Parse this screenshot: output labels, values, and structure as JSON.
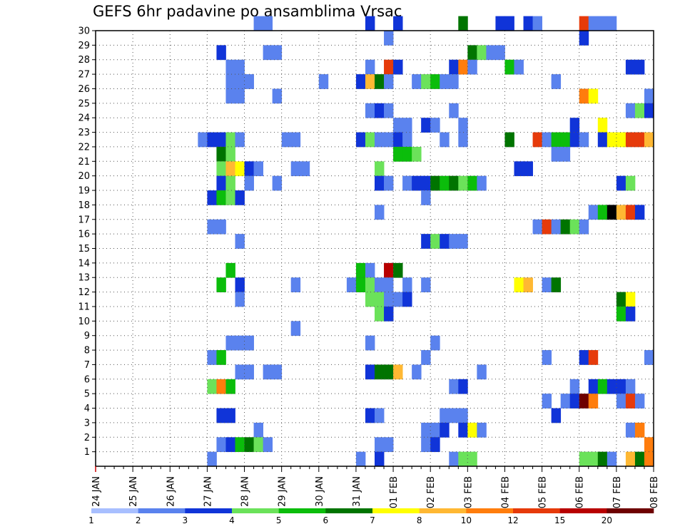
{
  "chart_data": {
    "type": "heatmap",
    "title": "GEFS 6hr padavine po ansamblima Vrsac",
    "xlabel": "",
    "ylabel": "",
    "x_tick_labels": [
      "24 JAN",
      "25 JAN",
      "26 JAN",
      "27 JAN",
      "28 JAN",
      "29 JAN",
      "30 JAN",
      "31 JAN",
      "01 FEB",
      "02 FEB",
      "03 FEB",
      "04 FEB",
      "05 FEB",
      "06 FEB",
      "07 FEB",
      "08 FEB"
    ],
    "y_tick_labels": [
      "1",
      "2",
      "3",
      "4",
      "5",
      "6",
      "7",
      "8",
      "9",
      "10",
      "11",
      "12",
      "13",
      "14",
      "15",
      "16",
      "17",
      "18",
      "19",
      "20",
      "21",
      "22",
      "23",
      "24",
      "25",
      "26",
      "27",
      "28",
      "29",
      "30"
    ],
    "xlim": [
      0,
      60
    ],
    "ylim": [
      0,
      30
    ],
    "x_unit": "6-hour steps from 24 JAN 00Z",
    "grid": true,
    "legend": "bottom",
    "color_scale": {
      "labels": [
        "1",
        "2",
        "3",
        "4",
        "5",
        "6",
        "7",
        "8",
        "10",
        "12",
        "15",
        "20"
      ],
      "colors": [
        "#a8bfff",
        "#5a82ee",
        "#1034d8",
        "#6be25a",
        "#0bbd0b",
        "#007400",
        "#ffff00",
        "#ffb833",
        "#ff7d0d",
        "#e63a0a",
        "#b80000",
        "#6e0000"
      ]
    },
    "cells": [
      [
        30,
        17,
        1
      ],
      [
        30,
        18,
        1
      ],
      [
        30,
        29,
        2
      ],
      [
        30,
        32,
        2
      ],
      [
        30,
        39,
        5
      ],
      [
        30,
        43,
        2
      ],
      [
        30,
        44,
        2
      ],
      [
        30,
        46,
        2
      ],
      [
        30,
        47,
        1
      ],
      [
        30,
        52,
        9
      ],
      [
        30,
        53,
        1
      ],
      [
        30,
        54,
        1
      ],
      [
        30,
        55,
        1
      ],
      [
        29,
        31,
        1
      ],
      [
        29,
        52,
        2
      ],
      [
        28,
        13,
        2
      ],
      [
        28,
        18,
        1
      ],
      [
        28,
        19,
        1
      ],
      [
        28,
        40,
        5
      ],
      [
        28,
        41,
        3
      ],
      [
        28,
        42,
        1
      ],
      [
        28,
        43,
        1
      ],
      [
        27,
        14,
        1
      ],
      [
        27,
        15,
        1
      ],
      [
        27,
        29,
        1
      ],
      [
        27,
        31,
        9
      ],
      [
        27,
        32,
        2
      ],
      [
        27,
        38,
        2
      ],
      [
        27,
        39,
        8
      ],
      [
        27,
        40,
        1
      ],
      [
        27,
        44,
        4
      ],
      [
        27,
        45,
        1
      ],
      [
        27,
        57,
        2
      ],
      [
        27,
        58,
        2
      ],
      [
        26,
        14,
        1
      ],
      [
        26,
        15,
        1
      ],
      [
        26,
        16,
        1
      ],
      [
        26,
        24,
        1
      ],
      [
        26,
        28,
        2
      ],
      [
        26,
        29,
        7
      ],
      [
        26,
        30,
        5
      ],
      [
        26,
        31,
        1
      ],
      [
        26,
        34,
        1
      ],
      [
        26,
        35,
        3
      ],
      [
        26,
        36,
        4
      ],
      [
        26,
        37,
        1
      ],
      [
        26,
        38,
        1
      ],
      [
        26,
        49,
        1
      ],
      [
        25,
        14,
        1
      ],
      [
        25,
        15,
        1
      ],
      [
        25,
        19,
        1
      ],
      [
        25,
        52,
        8
      ],
      [
        25,
        53,
        6
      ],
      [
        25,
        59,
        1
      ],
      [
        24,
        29,
        1
      ],
      [
        24,
        30,
        2
      ],
      [
        24,
        31,
        1
      ],
      [
        24,
        38,
        1
      ],
      [
        24,
        57,
        1
      ],
      [
        24,
        58,
        3
      ],
      [
        24,
        59,
        2
      ],
      [
        23,
        32,
        1
      ],
      [
        23,
        33,
        1
      ],
      [
        23,
        35,
        2
      ],
      [
        23,
        36,
        1
      ],
      [
        23,
        39,
        1
      ],
      [
        23,
        51,
        2
      ],
      [
        23,
        54,
        6
      ],
      [
        22,
        11,
        1
      ],
      [
        22,
        12,
        2
      ],
      [
        22,
        13,
        2
      ],
      [
        22,
        14,
        3
      ],
      [
        22,
        15,
        1
      ],
      [
        22,
        20,
        1
      ],
      [
        22,
        21,
        1
      ],
      [
        22,
        28,
        2
      ],
      [
        22,
        29,
        3
      ],
      [
        22,
        30,
        1
      ],
      [
        22,
        31,
        1
      ],
      [
        22,
        32,
        2
      ],
      [
        22,
        33,
        1
      ],
      [
        22,
        37,
        1
      ],
      [
        22,
        39,
        1
      ],
      [
        22,
        44,
        5
      ],
      [
        22,
        47,
        9
      ],
      [
        22,
        48,
        1
      ],
      [
        22,
        49,
        4
      ],
      [
        22,
        50,
        4
      ],
      [
        22,
        51,
        2
      ],
      [
        22,
        52,
        1
      ],
      [
        22,
        54,
        2
      ],
      [
        22,
        55,
        6
      ],
      [
        22,
        56,
        6
      ],
      [
        22,
        57,
        9
      ],
      [
        22,
        58,
        9
      ],
      [
        22,
        59,
        7
      ],
      [
        21,
        13,
        5
      ],
      [
        21,
        14,
        3
      ],
      [
        21,
        32,
        4
      ],
      [
        21,
        33,
        4
      ],
      [
        21,
        34,
        3
      ],
      [
        21,
        49,
        1
      ],
      [
        21,
        50,
        1
      ],
      [
        20,
        13,
        3
      ],
      [
        20,
        14,
        7
      ],
      [
        20,
        15,
        6
      ],
      [
        20,
        16,
        2
      ],
      [
        20,
        17,
        1
      ],
      [
        20,
        21,
        1
      ],
      [
        20,
        22,
        1
      ],
      [
        20,
        30,
        3
      ],
      [
        20,
        45,
        2
      ],
      [
        20,
        46,
        2
      ],
      [
        19,
        13,
        2
      ],
      [
        19,
        14,
        3
      ],
      [
        19,
        16,
        1
      ],
      [
        19,
        19,
        1
      ],
      [
        19,
        30,
        2
      ],
      [
        19,
        31,
        1
      ],
      [
        19,
        33,
        1
      ],
      [
        19,
        34,
        2
      ],
      [
        19,
        35,
        2
      ],
      [
        19,
        36,
        5
      ],
      [
        19,
        37,
        4
      ],
      [
        19,
        38,
        5
      ],
      [
        19,
        39,
        3
      ],
      [
        19,
        40,
        4
      ],
      [
        19,
        41,
        1
      ],
      [
        19,
        56,
        2
      ],
      [
        19,
        57,
        3
      ],
      [
        18,
        12,
        2
      ],
      [
        18,
        13,
        4
      ],
      [
        18,
        14,
        3
      ],
      [
        18,
        15,
        2
      ],
      [
        18,
        35,
        1
      ],
      [
        17,
        30,
        1
      ],
      [
        17,
        53,
        1
      ],
      [
        17,
        54,
        4
      ],
      [
        17,
        55,
        12
      ],
      [
        17,
        56,
        7
      ],
      [
        17,
        57,
        9
      ],
      [
        17,
        58,
        2
      ],
      [
        16,
        12,
        1
      ],
      [
        16,
        13,
        1
      ],
      [
        16,
        47,
        1
      ],
      [
        16,
        48,
        9
      ],
      [
        16,
        49,
        1
      ],
      [
        16,
        50,
        5
      ],
      [
        16,
        51,
        3
      ],
      [
        16,
        52,
        1
      ],
      [
        15,
        15,
        1
      ],
      [
        15,
        35,
        2
      ],
      [
        15,
        36,
        3
      ],
      [
        15,
        37,
        2
      ],
      [
        15,
        38,
        1
      ],
      [
        15,
        39,
        1
      ],
      [
        13,
        28,
        4
      ],
      [
        13,
        29,
        1
      ],
      [
        13,
        31,
        10
      ],
      [
        13,
        32,
        5
      ],
      [
        12,
        13,
        4
      ],
      [
        13,
        14,
        4
      ],
      [
        12,
        15,
        2
      ],
      [
        12,
        21,
        1
      ],
      [
        12,
        27,
        1
      ],
      [
        12,
        28,
        4
      ],
      [
        12,
        29,
        3
      ],
      [
        12,
        30,
        1
      ],
      [
        12,
        31,
        1
      ],
      [
        12,
        33,
        1
      ],
      [
        12,
        35,
        1
      ],
      [
        12,
        45,
        6
      ],
      [
        12,
        46,
        7
      ],
      [
        12,
        48,
        1
      ],
      [
        12,
        49,
        5
      ],
      [
        11,
        15,
        1
      ],
      [
        11,
        29,
        3
      ],
      [
        11,
        30,
        3
      ],
      [
        11,
        31,
        1
      ],
      [
        11,
        32,
        1
      ],
      [
        11,
        33,
        2
      ],
      [
        11,
        56,
        5
      ],
      [
        11,
        57,
        6
      ],
      [
        10,
        30,
        3
      ],
      [
        10,
        31,
        2
      ],
      [
        10,
        56,
        4
      ],
      [
        10,
        57,
        2
      ],
      [
        9,
        21,
        1
      ],
      [
        8,
        14,
        1
      ],
      [
        8,
        15,
        1
      ],
      [
        8,
        16,
        1
      ],
      [
        8,
        29,
        1
      ],
      [
        8,
        36,
        1
      ],
      [
        7,
        12,
        1
      ],
      [
        7,
        13,
        4
      ],
      [
        7,
        35,
        1
      ],
      [
        7,
        48,
        1
      ],
      [
        7,
        52,
        2
      ],
      [
        7,
        53,
        9
      ],
      [
        7,
        59,
        1
      ],
      [
        6,
        15,
        1
      ],
      [
        6,
        16,
        1
      ],
      [
        6,
        18,
        1
      ],
      [
        6,
        19,
        1
      ],
      [
        6,
        29,
        2
      ],
      [
        6,
        30,
        5
      ],
      [
        6,
        31,
        5
      ],
      [
        6,
        32,
        7
      ],
      [
        6,
        34,
        1
      ],
      [
        6,
        41,
        1
      ],
      [
        5,
        12,
        3
      ],
      [
        5,
        13,
        8
      ],
      [
        5,
        14,
        4
      ],
      [
        5,
        38,
        1
      ],
      [
        5,
        39,
        2
      ],
      [
        5,
        51,
        1
      ],
      [
        5,
        53,
        2
      ],
      [
        5,
        54,
        4
      ],
      [
        5,
        55,
        2
      ],
      [
        5,
        56,
        2
      ],
      [
        5,
        57,
        1
      ],
      [
        4,
        48,
        1
      ],
      [
        4,
        50,
        1
      ],
      [
        4,
        51,
        2
      ],
      [
        4,
        52,
        11
      ],
      [
        4,
        53,
        8
      ],
      [
        4,
        56,
        1
      ],
      [
        4,
        57,
        9
      ],
      [
        4,
        58,
        1
      ],
      [
        3,
        13,
        2
      ],
      [
        3,
        14,
        2
      ],
      [
        3,
        29,
        2
      ],
      [
        3,
        30,
        1
      ],
      [
        3,
        37,
        1
      ],
      [
        3,
        38,
        1
      ],
      [
        3,
        39,
        1
      ],
      [
        3,
        49,
        2
      ],
      [
        2,
        17,
        1
      ],
      [
        2,
        35,
        1
      ],
      [
        2,
        36,
        1
      ],
      [
        2,
        37,
        2
      ],
      [
        2,
        39,
        2
      ],
      [
        2,
        40,
        6
      ],
      [
        2,
        41,
        1
      ],
      [
        2,
        57,
        1
      ],
      [
        2,
        58,
        8
      ],
      [
        1,
        13,
        1
      ],
      [
        1,
        14,
        2
      ],
      [
        1,
        15,
        4
      ],
      [
        1,
        16,
        5
      ],
      [
        1,
        17,
        3
      ],
      [
        1,
        18,
        1
      ],
      [
        1,
        30,
        1
      ],
      [
        1,
        31,
        1
      ],
      [
        1,
        35,
        1
      ],
      [
        1,
        36,
        2
      ],
      [
        1,
        59,
        8
      ],
      [
        0,
        12,
        1
      ],
      [
        0,
        28,
        1
      ],
      [
        0,
        30,
        2
      ],
      [
        0,
        38,
        1
      ],
      [
        0,
        39,
        3
      ],
      [
        0,
        40,
        3
      ],
      [
        0,
        52,
        3
      ],
      [
        0,
        53,
        3
      ],
      [
        0,
        54,
        5
      ],
      [
        0,
        55,
        1
      ],
      [
        0,
        57,
        7
      ],
      [
        0,
        58,
        5
      ],
      [
        0,
        59,
        8
      ]
    ]
  }
}
